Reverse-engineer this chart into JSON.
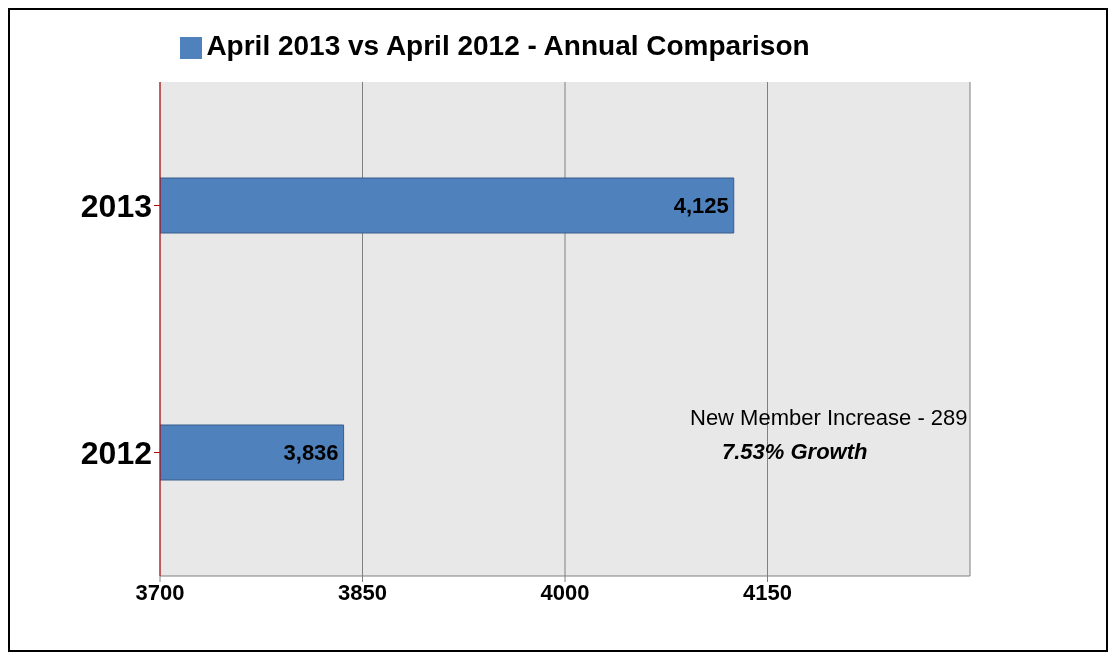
{
  "chart_data": {
    "type": "bar",
    "orientation": "horizontal",
    "categories": [
      "2013",
      "2012"
    ],
    "series": [
      {
        "name": "April 2013 vs April 2012 - Annual Comparison",
        "color": "#4f81bd",
        "values": [
          4125,
          3836
        ],
        "value_labels": [
          "4,125",
          "3,836"
        ]
      }
    ],
    "xlim": [
      3700,
      4300
    ],
    "xticks": [
      3700,
      3850,
      4000,
      4150
    ],
    "grid": "x",
    "legend": "top",
    "annotations": [
      "New Member Increase - 289",
      "7.53% Growth"
    ]
  }
}
